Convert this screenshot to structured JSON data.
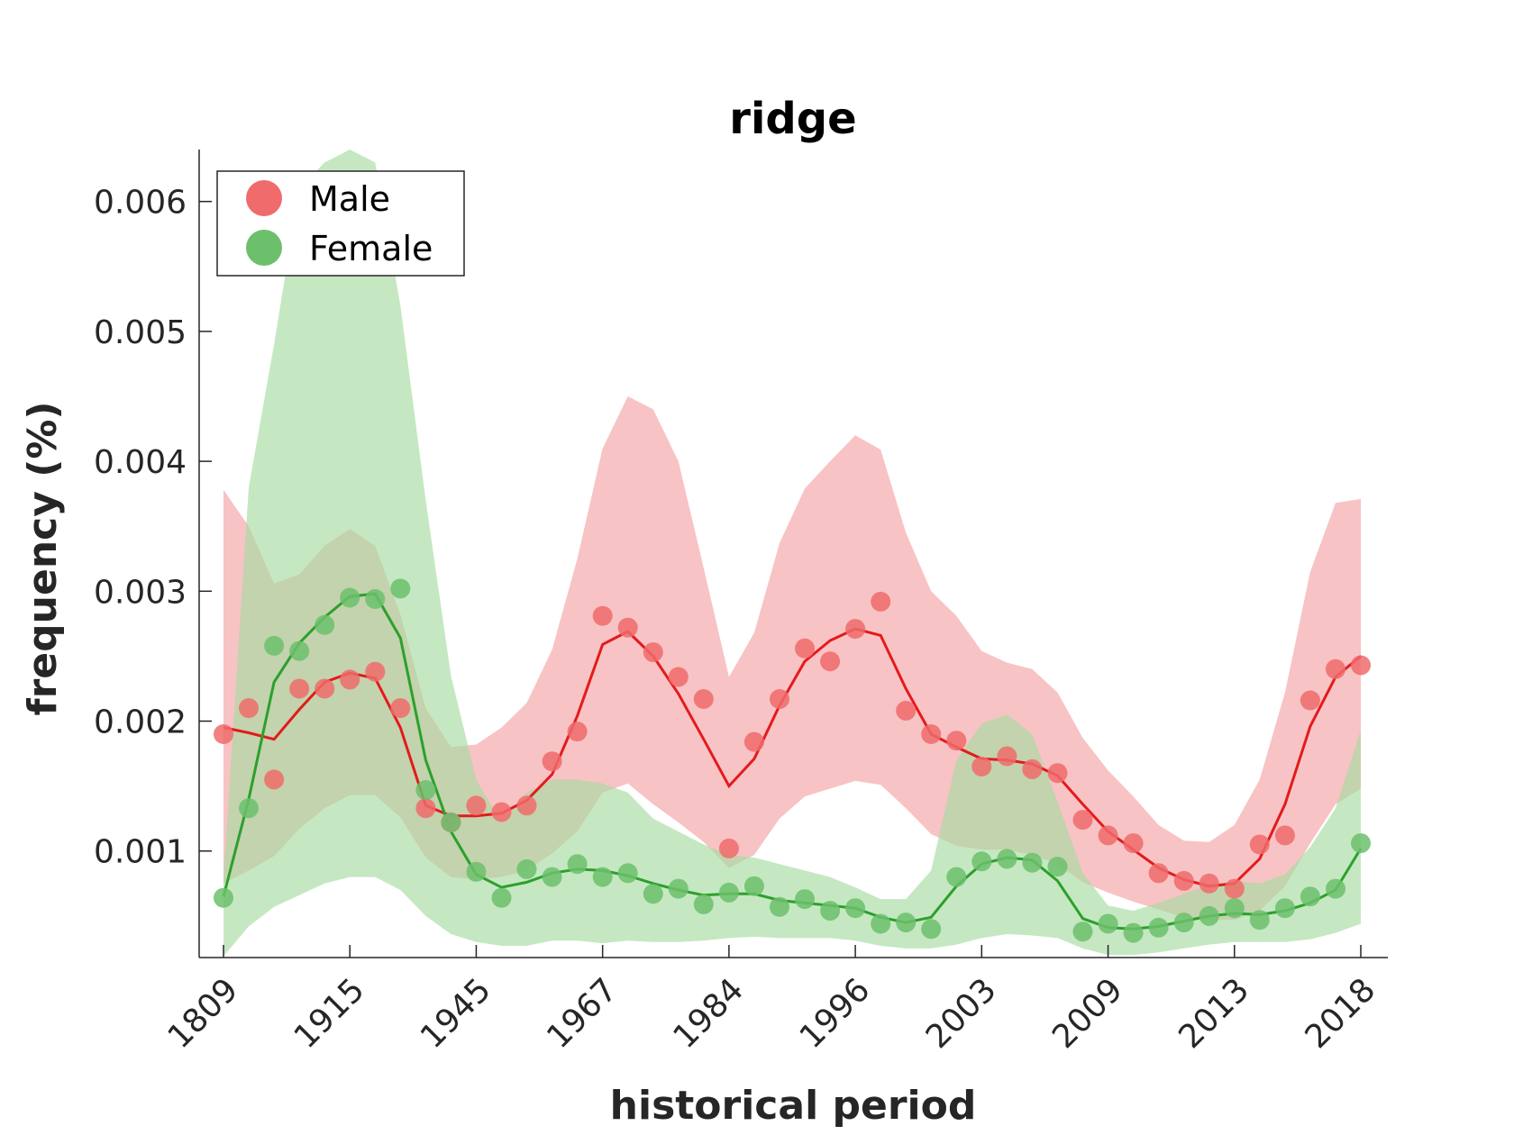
{
  "chart_data": {
    "type": "line",
    "title": "ridge",
    "xlabel": "historical period",
    "ylabel": "frequency (%)",
    "x_tick_labels": [
      "1809",
      "1915",
      "1945",
      "1967",
      "1984",
      "1996",
      "2003",
      "2009",
      "2013",
      "2018"
    ],
    "y_ticks": [
      0.001,
      0.002,
      0.003,
      0.004,
      0.005,
      0.006
    ],
    "y_tick_labels": [
      "0.001",
      "0.002",
      "0.003",
      "0.004",
      "0.005",
      "0.006"
    ],
    "ylim": [
      0.00018,
      0.0064
    ],
    "grid": false,
    "legend_position": "top-left",
    "series": [
      {
        "name": "Male",
        "color": "#e41a1c",
        "marker_color": "#f06b6b",
        "band_color": "#f4a3a4",
        "points": [
          0.0019,
          0.0021,
          0.00155,
          0.00225,
          0.00225,
          0.00232,
          0.00238,
          0.0021,
          0.00133,
          0.00122,
          0.00135,
          0.0013,
          0.00135,
          0.00169,
          0.00192,
          0.00281,
          0.00272,
          0.00253,
          0.00234,
          0.00217,
          0.00102,
          0.00184,
          0.00217,
          0.00256,
          0.00246,
          0.00271,
          0.00292,
          0.00208,
          0.0019,
          0.00185,
          0.00165,
          0.00173,
          0.00163,
          0.0016,
          0.00124,
          0.00112,
          0.00106,
          0.00083,
          0.00077,
          0.00075,
          0.00071,
          0.00105,
          0.00112,
          0.00216,
          0.0024,
          0.00243
        ],
        "trend": [
          0.00195,
          0.00191,
          0.00186,
          0.00209,
          0.0023,
          0.00237,
          0.00233,
          0.00195,
          0.00135,
          0.00127,
          0.00127,
          0.00129,
          0.00139,
          0.00159,
          0.00204,
          0.00259,
          0.00269,
          0.0025,
          0.00221,
          0.00186,
          0.0015,
          0.00171,
          0.00212,
          0.00246,
          0.00262,
          0.00271,
          0.00266,
          0.00225,
          0.0019,
          0.0018,
          0.00171,
          0.0017,
          0.00167,
          0.00158,
          0.00136,
          0.00115,
          0.00101,
          0.00087,
          0.00078,
          0.00073,
          0.00075,
          0.00094,
          0.00136,
          0.00196,
          0.00234,
          0.0025
        ],
        "upper": [
          0.00378,
          0.0035,
          0.00306,
          0.00313,
          0.00335,
          0.00348,
          0.00335,
          0.00282,
          0.0021,
          0.0018,
          0.00182,
          0.00195,
          0.00214,
          0.00255,
          0.00325,
          0.0041,
          0.0045,
          0.0044,
          0.004,
          0.00318,
          0.00234,
          0.00268,
          0.00337,
          0.00379,
          0.004,
          0.0042,
          0.00409,
          0.00345,
          0.003,
          0.00281,
          0.00254,
          0.00245,
          0.0024,
          0.00222,
          0.00187,
          0.00162,
          0.00142,
          0.0012,
          0.00108,
          0.00107,
          0.0012,
          0.00155,
          0.00222,
          0.00315,
          0.00368,
          0.00371
        ],
        "lower": [
          0.00075,
          0.00085,
          0.00096,
          0.00117,
          0.00133,
          0.00143,
          0.00143,
          0.00126,
          0.00095,
          0.0008,
          0.00078,
          0.0008,
          0.00085,
          0.00098,
          0.00115,
          0.00145,
          0.00152,
          0.00136,
          0.00122,
          0.00107,
          0.00087,
          0.00097,
          0.00125,
          0.00142,
          0.00148,
          0.00154,
          0.00151,
          0.00133,
          0.00113,
          0.00104,
          0.00101,
          0.00101,
          0.00097,
          0.0009,
          0.00076,
          0.00068,
          0.00061,
          0.00055,
          0.00049,
          0.00047,
          0.00047,
          0.00054,
          0.00073,
          0.00106,
          0.00136,
          0.00148
        ]
      },
      {
        "name": "Female",
        "color": "#2ca02c",
        "marker_color": "#6cc06c",
        "band_color": "#a6dba1",
        "points": [
          0.00064,
          0.00133,
          0.00258,
          0.00254,
          0.00274,
          0.00295,
          0.00294,
          0.00302,
          0.00147,
          0.00122,
          0.00084,
          0.00064,
          0.00086,
          0.0008,
          0.0009,
          0.0008,
          0.00083,
          0.00067,
          0.00071,
          0.00059,
          0.00068,
          0.00073,
          0.00057,
          0.00063,
          0.00054,
          0.00056,
          0.00044,
          0.00045,
          0.0004,
          0.0008,
          0.00092,
          0.00094,
          0.00091,
          0.00088,
          0.00038,
          0.00044,
          0.00037,
          0.00041,
          0.00045,
          0.0005,
          0.00056,
          0.00047,
          0.00056,
          0.00065,
          0.00071,
          0.00106
        ],
        "trend": [
          0.00065,
          0.0014,
          0.0023,
          0.0026,
          0.0028,
          0.00296,
          0.00298,
          0.00264,
          0.0017,
          0.00115,
          0.00082,
          0.00072,
          0.00076,
          0.00083,
          0.00086,
          0.00085,
          0.00081,
          0.00075,
          0.0007,
          0.00066,
          0.00067,
          0.00067,
          0.00062,
          0.0006,
          0.00058,
          0.00056,
          0.00049,
          0.00045,
          0.00049,
          0.00073,
          0.0009,
          0.00095,
          0.00093,
          0.00077,
          0.00048,
          0.00041,
          0.0004,
          0.00042,
          0.00046,
          0.0005,
          0.00052,
          0.00051,
          0.00054,
          0.0006,
          0.0007,
          0.00102
        ],
        "upper": [
          0.0008,
          0.0038,
          0.0049,
          0.0061,
          0.0063,
          0.0064,
          0.0063,
          0.0052,
          0.0037,
          0.00235,
          0.00155,
          0.00122,
          0.00145,
          0.00155,
          0.00155,
          0.00152,
          0.00145,
          0.00125,
          0.00115,
          0.00105,
          0.00097,
          0.00095,
          0.0009,
          0.00085,
          0.0008,
          0.00072,
          0.00063,
          0.00063,
          0.00085,
          0.0017,
          0.00198,
          0.00205,
          0.0019,
          0.00138,
          0.00083,
          0.00058,
          0.00054,
          0.0006,
          0.00067,
          0.00074,
          0.00077,
          0.00075,
          0.00082,
          0.00103,
          0.00133,
          0.00193
        ],
        "lower": [
          0.00019,
          0.00042,
          0.00057,
          0.00066,
          0.00075,
          0.0008,
          0.0008,
          0.0007,
          0.0005,
          0.00036,
          0.0003,
          0.00027,
          0.00027,
          0.00031,
          0.00031,
          0.00029,
          0.00031,
          0.0003,
          0.0003,
          0.00031,
          0.00033,
          0.00034,
          0.00033,
          0.00033,
          0.00033,
          0.00031,
          0.00027,
          0.00025,
          0.00025,
          0.00028,
          0.00033,
          0.00036,
          0.00035,
          0.00033,
          0.00025,
          0.0002,
          0.0002,
          0.00022,
          0.00025,
          0.00028,
          0.0003,
          0.0003,
          0.0003,
          0.00032,
          0.00037,
          0.00044
        ]
      }
    ]
  }
}
